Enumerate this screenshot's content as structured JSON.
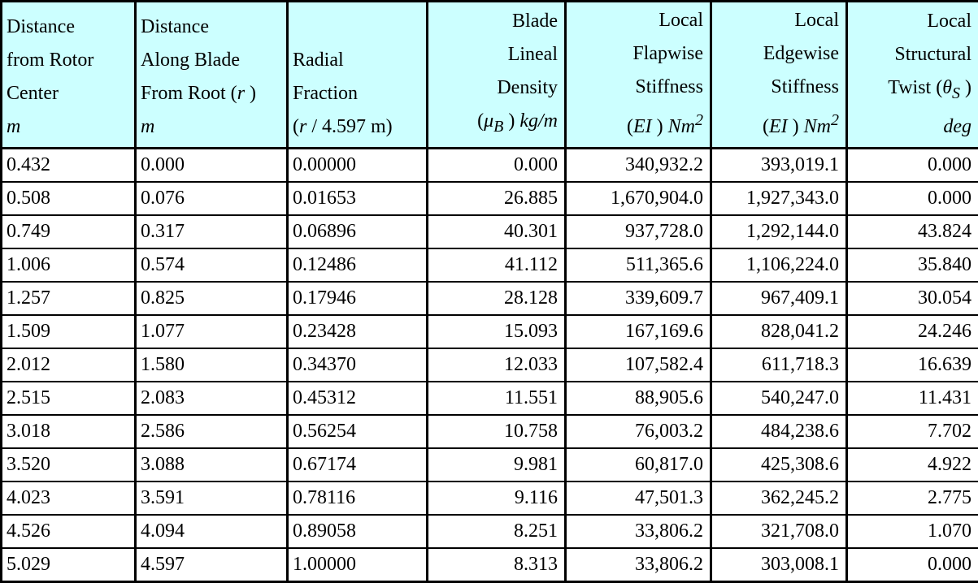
{
  "colors": {
    "header_bg": "#ccffff",
    "border": "#000000",
    "cell_bg": "#ffffff",
    "text": "#000000"
  },
  "chart_data": {
    "type": "table",
    "columns": [
      "Distance from Rotor Center, m",
      "Distance Along Blade From Root (r), m",
      "Radial Fraction (r / 4.597 m)",
      "Blade Lineal Density (μB) kg/m",
      "Local Flapwise Stiffness (EI) Nm2",
      "Local Edgewise Stiffness (EI) Nm2",
      "Local Structural Twist (θS) deg"
    ],
    "header_html": [
      "Distance<br>from Rotor<br>Center<br><i>m</i>",
      "Distance<br>Along Blade<br>From Root (<i>r</i> )<br><i>m</i>",
      "Radial<br>Fraction<br>(<i>r</i> / 4.597 m)",
      "Blade<br>Lineal<br>Density<br>(<i>&#956;<sub>B</sub></i> ) <i>kg/m</i>",
      "Local<br>Flapwise<br>Stiffness<br>(<i>EI</i> ) <i>Nm<sup>2</sup></i>",
      "Local<br>Edgewise<br>Stiffness<br>(<i>EI</i> ) <i>Nm<sup>2</sup></i>",
      "Local<br>Structural<br>Twist (<i>&#952;<sub>S</sub></i> )<br><i>deg</i>"
    ],
    "rows": [
      [
        "0.432",
        "0.000",
        "0.00000",
        "0.000",
        "340,932.2",
        "393,019.1",
        "0.000"
      ],
      [
        "0.508",
        "0.076",
        "0.01653",
        "26.885",
        "1,670,904.0",
        "1,927,343.0",
        "0.000"
      ],
      [
        "0.749",
        "0.317",
        "0.06896",
        "40.301",
        "937,728.0",
        "1,292,144.0",
        "43.824"
      ],
      [
        "1.006",
        "0.574",
        "0.12486",
        "41.112",
        "511,365.6",
        "1,106,224.0",
        "35.840"
      ],
      [
        "1.257",
        "0.825",
        "0.17946",
        "28.128",
        "339,609.7",
        "967,409.1",
        "30.054"
      ],
      [
        "1.509",
        "1.077",
        "0.23428",
        "15.093",
        "167,169.6",
        "828,041.2",
        "24.246"
      ],
      [
        "2.012",
        "1.580",
        "0.34370",
        "12.033",
        "107,582.4",
        "611,718.3",
        "16.639"
      ],
      [
        "2.515",
        "2.083",
        "0.45312",
        "11.551",
        "88,905.6",
        "540,247.0",
        "11.431"
      ],
      [
        "3.018",
        "2.586",
        "0.56254",
        "10.758",
        "76,003.2",
        "484,238.6",
        "7.702"
      ],
      [
        "3.520",
        "3.088",
        "0.67174",
        "9.981",
        "60,817.0",
        "425,308.6",
        "4.922"
      ],
      [
        "4.023",
        "3.591",
        "0.78116",
        "9.116",
        "47,501.3",
        "362,245.2",
        "2.775"
      ],
      [
        "4.526",
        "4.094",
        "0.89058",
        "8.251",
        "33,806.2",
        "321,708.0",
        "1.070"
      ],
      [
        "5.029",
        "4.597",
        "1.00000",
        "8.313",
        "33,806.2",
        "303,008.1",
        "0.000"
      ]
    ]
  }
}
